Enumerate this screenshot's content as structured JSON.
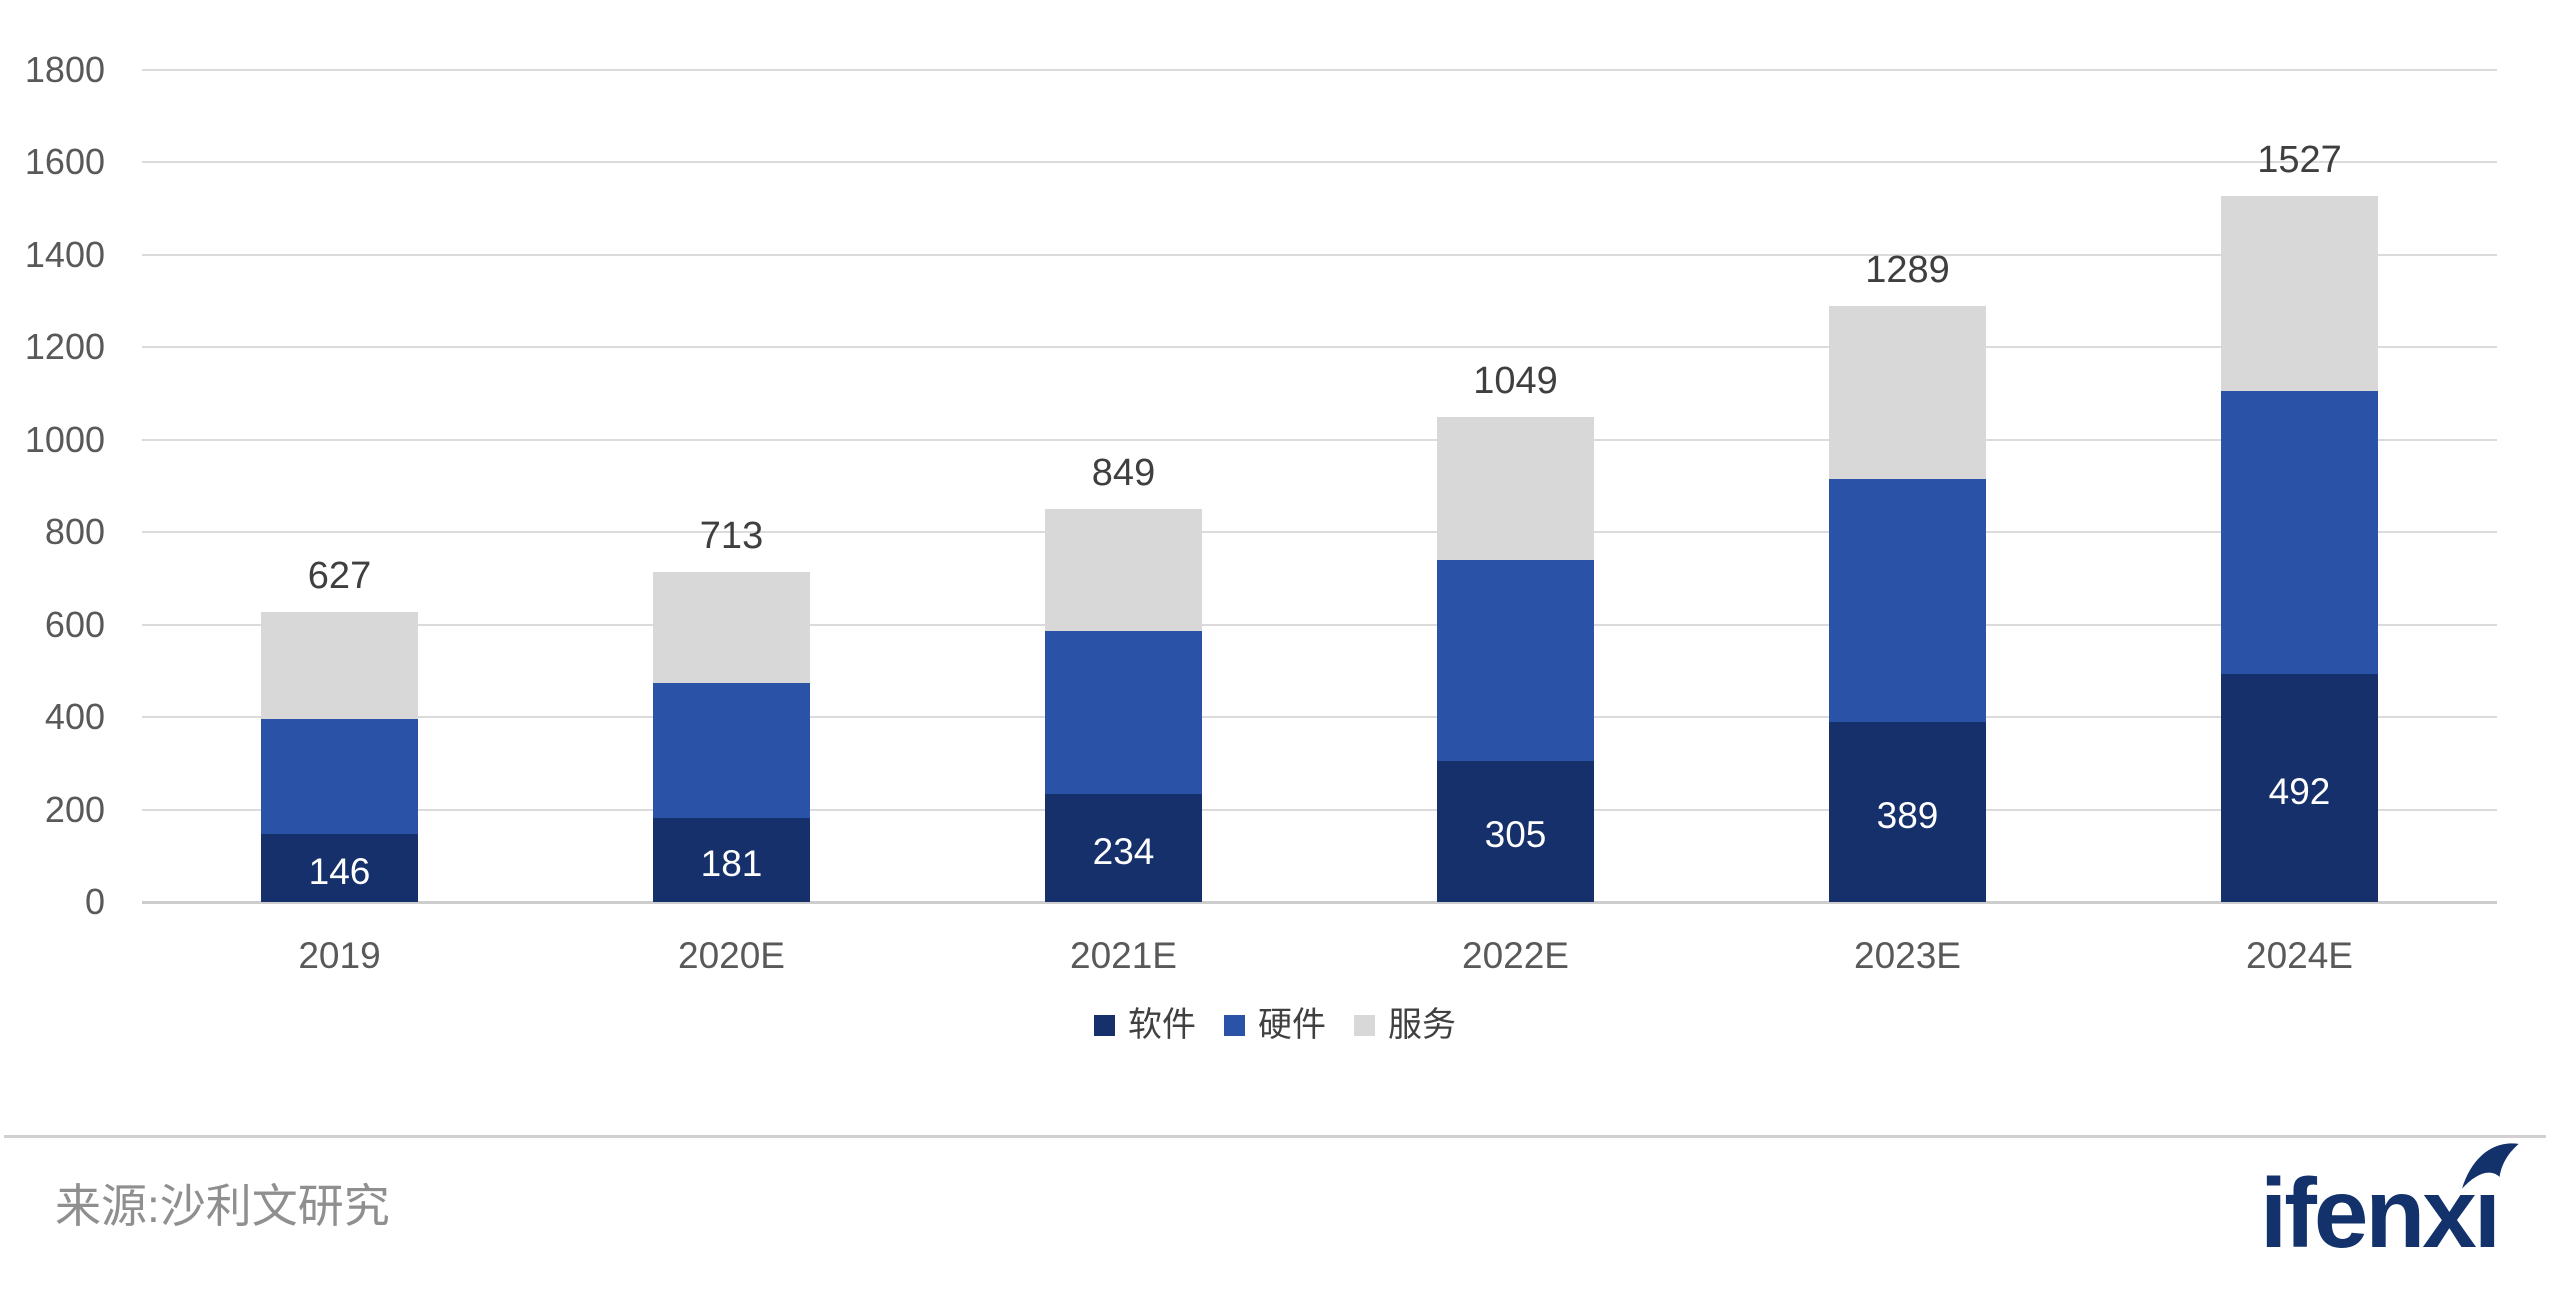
{
  "chart_data": {
    "type": "bar",
    "stacked": true,
    "title": "",
    "categories": [
      "2019",
      "2020E",
      "2021E",
      "2022E",
      "2023E",
      "2024E"
    ],
    "series": [
      {
        "key": "software",
        "name": "软件",
        "color": "#16306c",
        "values": [
          146,
          181,
          234,
          305,
          389,
          492
        ],
        "show_value_labels": true
      },
      {
        "key": "hardware",
        "name": "硬件",
        "color": "#2a52a6",
        "values": [
          250,
          293,
          353,
          434,
          526,
          612
        ],
        "show_value_labels": false
      },
      {
        "key": "services",
        "name": "服务",
        "color": "#d8d8d8",
        "values": [
          231,
          239,
          262,
          310,
          374,
          423
        ],
        "show_value_labels": false
      }
    ],
    "totals": [
      627,
      713,
      849,
      1049,
      1289,
      1527
    ],
    "total_labels": [
      "627",
      "713",
      "849",
      "1049",
      "1289",
      "1527"
    ],
    "software_value_labels": [
      "146",
      "181",
      "234",
      "305",
      "389",
      "492"
    ],
    "xlabel": "",
    "ylabel": "",
    "ylim": [
      0,
      1800
    ],
    "ytick_step": 200,
    "ytick_labels": [
      "0",
      "200",
      "400",
      "600",
      "800",
      "1000",
      "1200",
      "1400",
      "1600",
      "1800"
    ],
    "grid": "horizontal",
    "legend_position": "bottom-center"
  },
  "footer": {
    "source": "来源:沙利文研究",
    "logo_text": "ifenxi"
  },
  "colors": {
    "software": "#16306c",
    "hardware": "#2a52a6",
    "services": "#d8d8d8",
    "grid": "#dbdbdb",
    "axis_text": "#595959",
    "total_text": "#3f3f3f",
    "source_text": "#8f8f8f",
    "logo": "#13316b"
  }
}
